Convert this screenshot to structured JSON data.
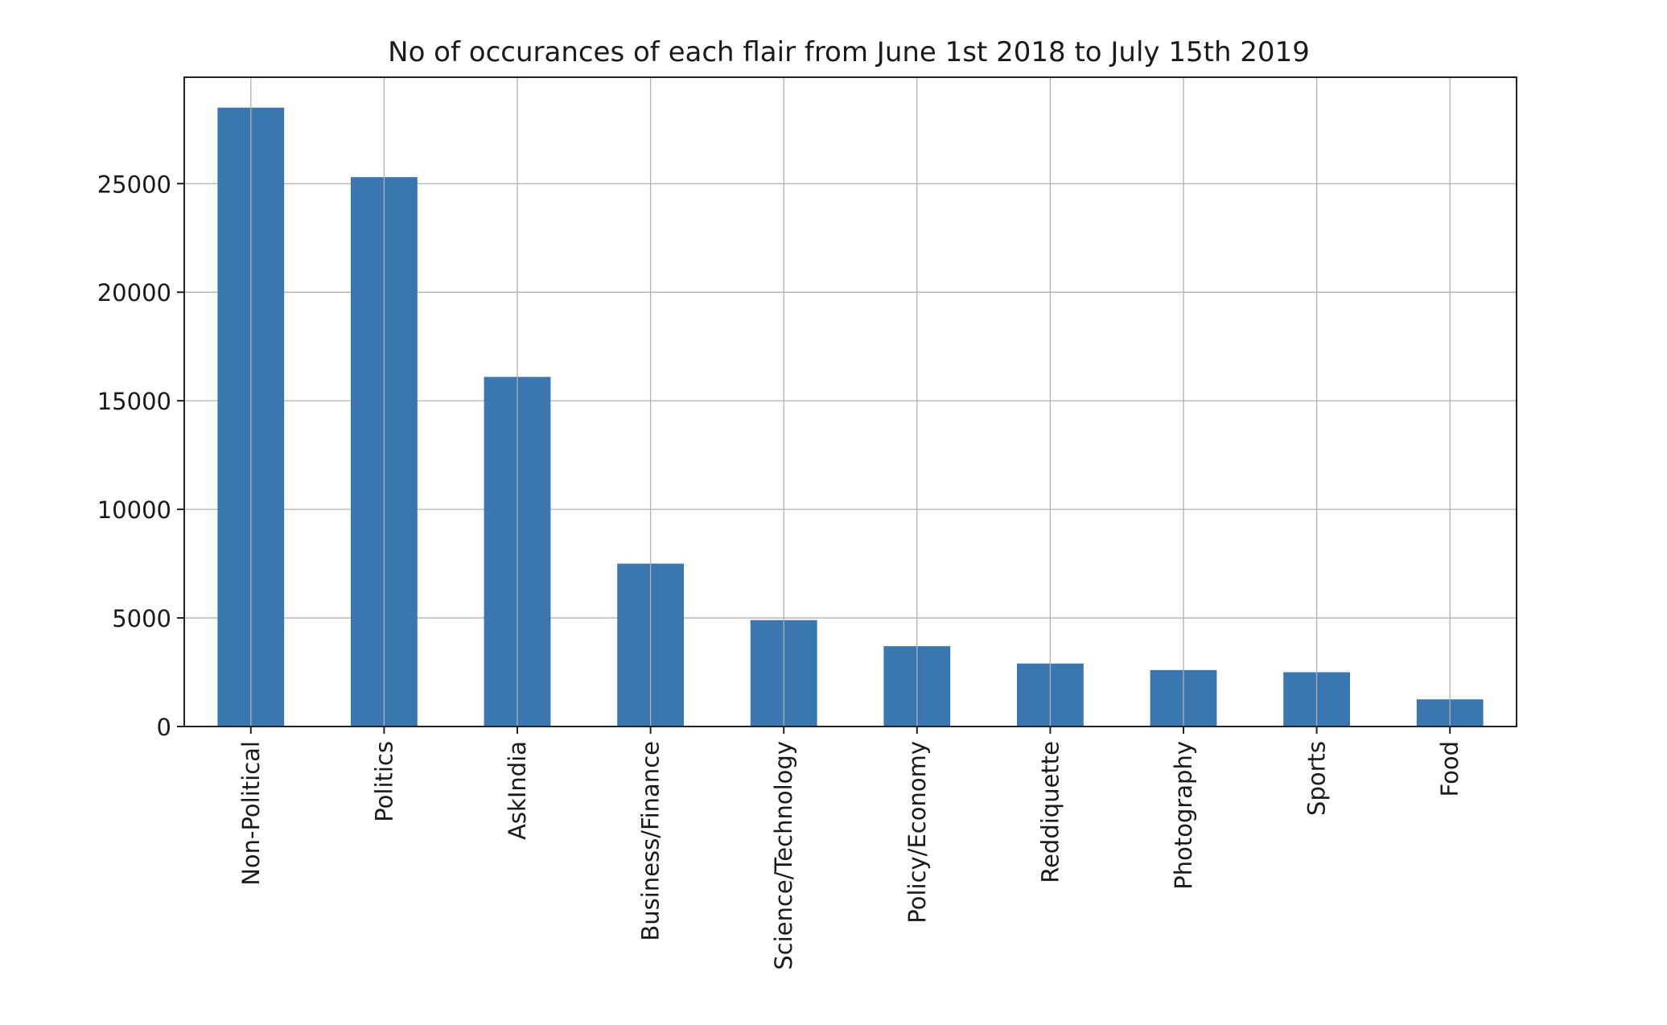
{
  "chart_data": {
    "type": "bar",
    "title": "No of occurances of each flair from June 1st 2018 to July 15th 2019",
    "xlabel": "",
    "ylabel": "",
    "categories": [
      "Non-Political",
      "Politics",
      "AskIndia",
      "Business/Finance",
      "Science/Technology",
      "Policy/Economy",
      "Reddiquette",
      "Photography",
      "Sports",
      "Food"
    ],
    "values": [
      28500,
      25300,
      16100,
      7500,
      4900,
      3700,
      2900,
      2600,
      2500,
      1250
    ],
    "ylim": [
      0,
      29900
    ],
    "yticks": [
      0,
      5000,
      10000,
      15000,
      20000,
      25000
    ],
    "ytick_labels": [
      "0",
      "5000",
      "10000",
      "15000",
      "20000",
      "25000"
    ],
    "grid": true,
    "bar_color": "#3a76b0"
  }
}
